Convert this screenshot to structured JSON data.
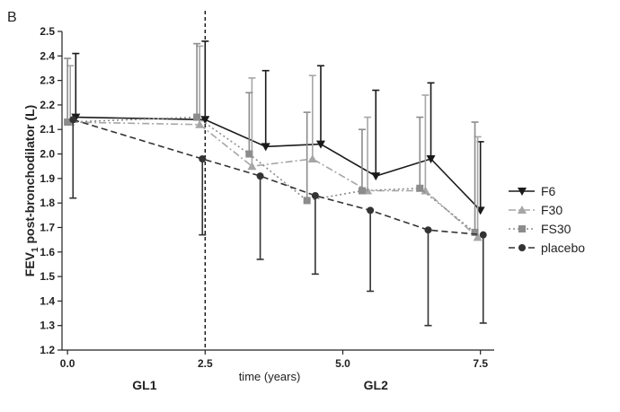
{
  "panel_label": "B",
  "chart_data": {
    "type": "line",
    "title": "",
    "xlabel": "time (years)",
    "ylabel": "FEV",
    "ylabel_sub": "1",
    "ylabel_suffix": " post-bronchodilator (L)",
    "xlim": [
      -0.1,
      7.75
    ],
    "ylim": [
      1.2,
      2.5
    ],
    "xticks": [
      "0.0",
      "2.5",
      "5.0",
      "7.5"
    ],
    "yticks": [
      "1.2",
      "1.3",
      "1.4",
      "1.5",
      "1.6",
      "1.7",
      "1.8",
      "1.9",
      "2.0",
      "2.1",
      "2.2",
      "2.3",
      "2.4",
      "2.5"
    ],
    "reference_line_x": 2.5,
    "group_labels": [
      {
        "text": "GL1",
        "x": 1.4
      },
      {
        "text": "GL2",
        "x": 5.6
      }
    ],
    "legend_position": "right",
    "grid": false,
    "series": [
      {
        "name": "F6",
        "color": "#1a1a1a",
        "marker": "triangle-down",
        "dash": "solid",
        "points": [
          {
            "x": 0.15,
            "y": 2.15,
            "hi": 2.41
          },
          {
            "x": 2.5,
            "y": 2.14,
            "hi": 2.46
          },
          {
            "x": 3.6,
            "y": 2.03,
            "hi": 2.34
          },
          {
            "x": 4.6,
            "y": 2.04,
            "hi": 2.36
          },
          {
            "x": 5.6,
            "y": 1.91,
            "hi": 2.26
          },
          {
            "x": 6.6,
            "y": 1.98,
            "hi": 2.29
          },
          {
            "x": 7.5,
            "y": 1.77,
            "hi": 2.05
          }
        ]
      },
      {
        "name": "F30",
        "color": "#a6a6a6",
        "marker": "triangle-up",
        "dash": "dashdot",
        "points": [
          {
            "x": 0.05,
            "y": 2.13,
            "hi": 2.36
          },
          {
            "x": 2.4,
            "y": 2.12,
            "hi": 2.44
          },
          {
            "x": 3.35,
            "y": 1.95,
            "hi": 2.31
          },
          {
            "x": 4.45,
            "y": 1.98,
            "hi": 2.32
          },
          {
            "x": 5.45,
            "y": 1.85,
            "hi": 2.15
          },
          {
            "x": 6.5,
            "y": 1.85,
            "hi": 2.24
          },
          {
            "x": 7.45,
            "y": 1.66,
            "hi": 2.07
          }
        ]
      },
      {
        "name": "FS30",
        "color": "#8c8c8c",
        "marker": "square",
        "dash": "dotted",
        "points": [
          {
            "x": 0.0,
            "y": 2.13,
            "hi": 2.39
          },
          {
            "x": 2.35,
            "y": 2.15,
            "hi": 2.45
          },
          {
            "x": 3.3,
            "y": 2.0,
            "hi": 2.25
          },
          {
            "x": 4.35,
            "y": 1.81,
            "hi": 2.17
          },
          {
            "x": 5.35,
            "y": 1.85,
            "hi": 2.1
          },
          {
            "x": 6.4,
            "y": 1.86,
            "hi": 2.15
          },
          {
            "x": 7.4,
            "y": 1.68,
            "hi": 2.13
          }
        ]
      },
      {
        "name": "placebo",
        "color": "#333333",
        "marker": "circle",
        "dash": "dashed",
        "points": [
          {
            "x": 0.1,
            "y": 2.14,
            "lo": 1.82
          },
          {
            "x": 2.45,
            "y": 1.98,
            "lo": 1.67
          },
          {
            "x": 3.5,
            "y": 1.91,
            "lo": 1.57
          },
          {
            "x": 4.5,
            "y": 1.83,
            "lo": 1.51
          },
          {
            "x": 5.5,
            "y": 1.77,
            "lo": 1.44
          },
          {
            "x": 6.55,
            "y": 1.69,
            "lo": 1.3
          },
          {
            "x": 7.55,
            "y": 1.67,
            "lo": 1.31
          }
        ]
      }
    ]
  }
}
